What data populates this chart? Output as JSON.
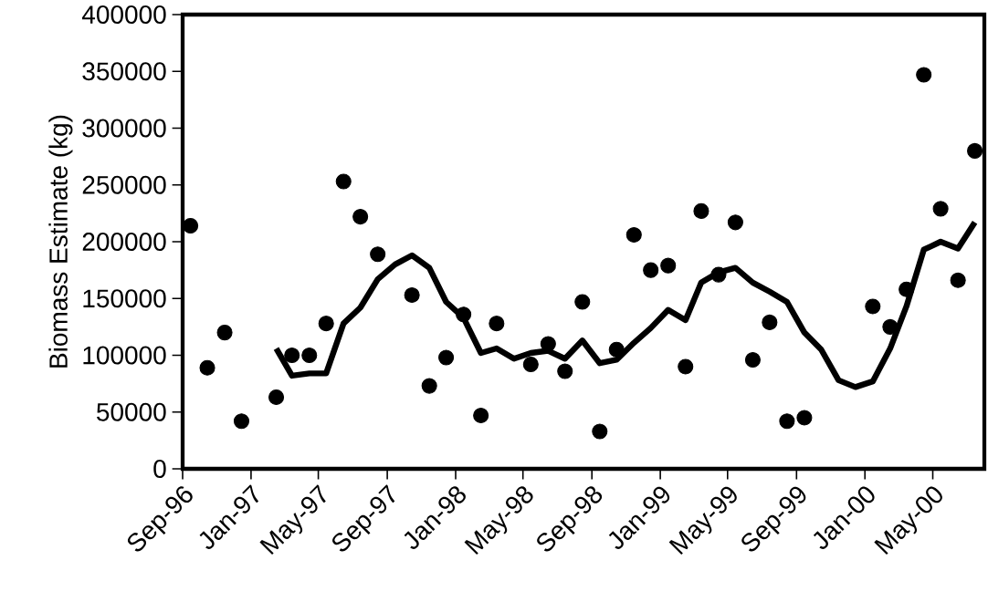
{
  "chart_data": {
    "type": "scatter",
    "marker": "circle",
    "ylabel": "Biomass Estimate (kg)",
    "xlim": [
      "1996-09-01",
      "2000-08-01"
    ],
    "xticks": [
      {
        "value": "1996-09-01",
        "label": "Sep-96"
      },
      {
        "value": "1997-01-01",
        "label": "Jan-97"
      },
      {
        "value": "1997-05-01",
        "label": "May-97"
      },
      {
        "value": "1997-09-01",
        "label": "Sep-97"
      },
      {
        "value": "1998-01-01",
        "label": "Jan-98"
      },
      {
        "value": "1998-05-01",
        "label": "May-98"
      },
      {
        "value": "1998-09-01",
        "label": "Sep-98"
      },
      {
        "value": "1999-01-01",
        "label": "Jan-99"
      },
      {
        "value": "1999-05-01",
        "label": "May-99"
      },
      {
        "value": "1999-09-01",
        "label": "Sep-99"
      },
      {
        "value": "2000-01-01",
        "label": "Jan-00"
      },
      {
        "value": "2000-05-01",
        "label": "May-00"
      }
    ],
    "ylim": [
      0,
      400000
    ],
    "yticks": [
      0,
      50000,
      100000,
      150000,
      200000,
      250000,
      300000,
      350000,
      400000
    ],
    "series": [
      {
        "color": "#000000",
        "x": [
          "1996-09-15",
          "1996-10-15",
          "1996-11-15",
          "1996-12-15",
          "1997-02-15",
          "1997-03-15",
          "1997-04-15",
          "1997-05-15",
          "1997-06-15",
          "1997-07-15",
          "1997-08-15",
          "1997-10-15",
          "1997-11-15",
          "1997-12-15",
          "1998-01-15",
          "1998-02-15",
          "1998-03-15",
          "1998-05-15",
          "1998-06-15",
          "1998-07-15",
          "1998-08-15",
          "1998-09-15",
          "1998-10-15",
          "1998-11-15",
          "1998-12-15",
          "1999-01-15",
          "1999-02-15",
          "1999-03-15",
          "1999-04-15",
          "1999-05-15",
          "1999-06-15",
          "1999-07-15",
          "1999-08-15",
          "1999-09-15",
          "2000-01-15",
          "2000-02-15",
          "2000-03-15",
          "2000-04-15",
          "2000-05-15",
          "2000-06-15",
          "2000-07-15"
        ],
        "values": [
          214000,
          89000,
          120000,
          42000,
          63000,
          100000,
          100000,
          128000,
          253000,
          222000,
          189000,
          153000,
          73000,
          98000,
          136000,
          47000,
          128000,
          92000,
          110000,
          86000,
          147000,
          33000,
          105000,
          206000,
          175000,
          179000,
          90000,
          227000,
          171000,
          217000,
          96000,
          129000,
          42000,
          45000,
          143000,
          125000,
          158000,
          347000,
          229000,
          166000,
          280000
        ]
      },
      {
        "type": "line",
        "marker": "none",
        "line_style": "solid",
        "color": "#000000",
        "x": [
          "1997-02-15",
          "1997-03-15",
          "1997-04-15",
          "1997-05-15",
          "1997-06-15",
          "1997-07-15",
          "1997-08-15",
          "1997-09-15",
          "1997-10-15",
          "1997-11-15",
          "1997-12-15",
          "1998-01-15",
          "1998-02-15",
          "1998-03-15",
          "1998-04-15",
          "1998-05-15",
          "1998-06-15",
          "1998-07-15",
          "1998-08-15",
          "1998-09-15",
          "1998-10-15",
          "1998-11-15",
          "1998-12-15",
          "1999-01-15",
          "1999-02-15",
          "1999-03-15",
          "1999-04-15",
          "1999-05-15",
          "1999-06-15",
          "1999-07-15",
          "1999-08-15",
          "1999-09-15",
          "1999-10-15",
          "1999-11-15",
          "1999-12-15",
          "2000-01-15",
          "2000-02-15",
          "2000-03-15",
          "2000-04-15",
          "2000-05-15",
          "2000-06-15",
          "2000-07-15"
        ],
        "values": [
          106000,
          82000,
          84000,
          84000,
          128000,
          142000,
          167000,
          180000,
          188000,
          177000,
          147000,
          133000,
          102000,
          106000,
          97000,
          102000,
          104000,
          97000,
          113000,
          93000,
          96000,
          111000,
          124000,
          140000,
          131000,
          164000,
          173000,
          177000,
          164000,
          156000,
          147000,
          120000,
          105000,
          78000,
          72000,
          77000,
          106000,
          143000,
          193000,
          200000,
          194000,
          217000
        ]
      }
    ]
  }
}
